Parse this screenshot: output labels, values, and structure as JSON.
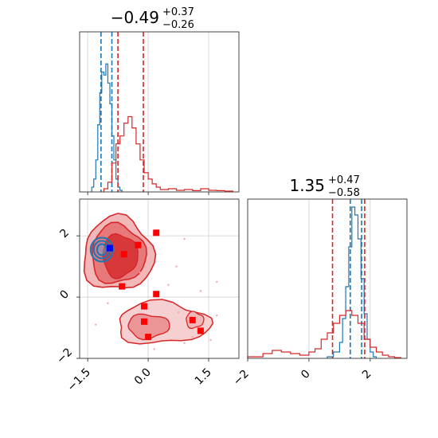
{
  "colors": {
    "blue": "#1f77b4",
    "red": "#d62728",
    "grid": "#d0d0d0",
    "axis": "#333333"
  },
  "chart_data": [
    {
      "type": "histogram",
      "panel": "top-left",
      "title_value": "−0.49",
      "title_upper": "+0.37",
      "title_lower": "−0.26",
      "xlim": [
        -1.7,
        2.25
      ],
      "grid": true,
      "xticks": [
        -1.5,
        0.0,
        1.5
      ],
      "series": [
        {
          "color": "#1f77b4",
          "bin_edges": [
            -1.4,
            -1.35,
            -1.3,
            -1.25,
            -1.2,
            -1.15,
            -1.1,
            -1.05,
            -1.0,
            -0.95,
            -0.9,
            -0.85,
            -0.8,
            -0.75,
            -0.7,
            -0.65
          ],
          "counts": [
            0.03,
            0.08,
            0.2,
            0.42,
            0.62,
            0.75,
            0.73,
            0.8,
            0.68,
            0.55,
            0.35,
            0.2,
            0.08,
            0.03,
            0.01
          ],
          "quantile_lines": [
            -1.17,
            -0.9
          ]
        },
        {
          "color": "#d62728",
          "bin_edges": [
            -1.1,
            -1.0,
            -0.9,
            -0.8,
            -0.7,
            -0.6,
            -0.5,
            -0.4,
            -0.3,
            -0.2,
            -0.1,
            0.0,
            0.1,
            0.2,
            0.3,
            0.5,
            0.7,
            0.9,
            1.1,
            1.3,
            1.5,
            1.7,
            1.9,
            2.1
          ],
          "counts": [
            0.02,
            0.06,
            0.18,
            0.3,
            0.35,
            0.43,
            0.47,
            0.4,
            0.3,
            0.2,
            0.12,
            0.08,
            0.05,
            0.03,
            0.015,
            0.02,
            0.01,
            0.015,
            0.008,
            0.02,
            0.01,
            0.008,
            0.005
          ],
          "quantile_lines": [
            -0.75,
            -0.12
          ]
        }
      ]
    },
    {
      "type": "histogram",
      "panel": "bottom-right",
      "title_value": "1.35",
      "title_upper": "+0.47",
      "title_lower": "−0.58",
      "xlim": [
        -2.0,
        3.2
      ],
      "grid": true,
      "xticks": [
        -2,
        0,
        2
      ],
      "series": [
        {
          "color": "#1f77b4",
          "bin_edges": [
            0.6,
            0.8,
            1.0,
            1.1,
            1.2,
            1.3,
            1.4,
            1.5,
            1.6,
            1.7,
            1.8,
            1.9,
            2.0,
            2.1,
            2.2
          ],
          "counts": [
            0.01,
            0.04,
            0.1,
            0.25,
            0.45,
            0.7,
            0.95,
            0.9,
            0.75,
            0.5,
            0.28,
            0.12,
            0.04,
            0.01
          ],
          "quantile_lines": [
            1.35,
            1.72
          ]
        },
        {
          "color": "#d62728",
          "bin_edges": [
            -2.0,
            -1.5,
            -1.2,
            -0.9,
            -0.6,
            -0.3,
            0.0,
            0.2,
            0.4,
            0.6,
            0.8,
            1.0,
            1.2,
            1.4,
            1.6,
            1.8,
            2.0,
            2.2,
            2.4,
            2.6,
            2.8,
            3.0
          ],
          "counts": [
            0.01,
            0.03,
            0.05,
            0.04,
            0.03,
            0.02,
            0.04,
            0.06,
            0.12,
            0.16,
            0.22,
            0.27,
            0.3,
            0.27,
            0.22,
            0.12,
            0.07,
            0.04,
            0.02,
            0.01,
            0.005
          ],
          "quantile_lines": [
            0.77,
            1.82
          ]
        }
      ]
    },
    {
      "type": "scatter",
      "panel": "bottom-left",
      "xlim": [
        -1.7,
        2.25
      ],
      "ylim": [
        -2.0,
        3.2
      ],
      "grid": true,
      "xticks": [
        -1.5,
        0.0,
        1.5
      ],
      "yticks": [
        -2,
        0,
        2
      ],
      "tick_labels": [
        "−1.5",
        "0.0",
        "1.5",
        "−2",
        "0",
        "2"
      ],
      "blue_contour_center": [
        -1.15,
        1.55
      ],
      "red_contours": [
        {
          "center": [
            -0.75,
            1.4
          ],
          "levels": 3
        },
        {
          "center": [
            0.35,
            -0.85
          ],
          "levels": 2
        }
      ],
      "blue_points": [
        {
          "x": -0.95,
          "y": 1.6
        }
      ],
      "red_points": [
        {
          "x": -0.6,
          "y": 1.4
        },
        {
          "x": -0.25,
          "y": 1.7
        },
        {
          "x": 0.2,
          "y": 2.1
        },
        {
          "x": -0.65,
          "y": 0.35
        },
        {
          "x": 0.2,
          "y": 0.1
        },
        {
          "x": -0.1,
          "y": -0.3
        },
        {
          "x": -0.1,
          "y": -0.8
        },
        {
          "x": 0.0,
          "y": -1.3
        },
        {
          "x": 1.1,
          "y": -0.75
        },
        {
          "x": 1.3,
          "y": -1.1
        }
      ]
    }
  ]
}
